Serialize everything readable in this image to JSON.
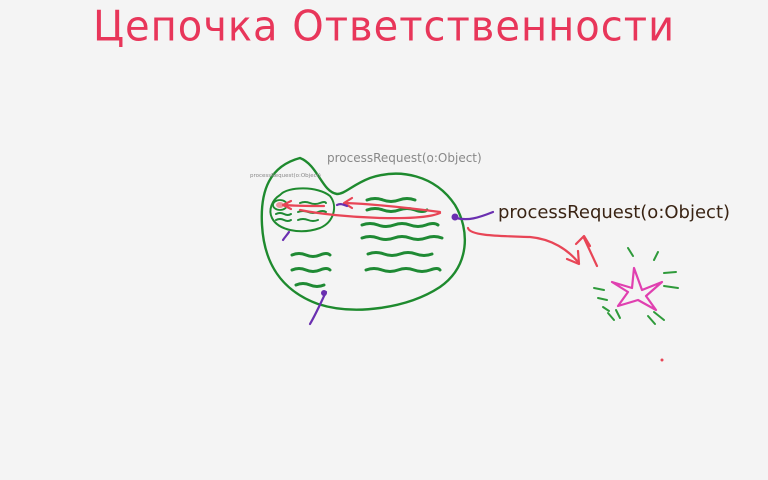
{
  "title": "Цепочка Ответственности",
  "labels": {
    "handler_main": "processRequest(o:Object)",
    "handler_middle": "processRequest(o:Object)",
    "handler_inner": "processRequest(o:Object)"
  },
  "colors": {
    "title": "#e8365a",
    "handler_outline": "#1e8a2e",
    "text_lines": "#1f8a34",
    "request_arrow": "#e84556",
    "hook": "#6a2fb0",
    "star": "#e040b0",
    "sparkle": "#2e9a3a",
    "label_main": "#3a2414",
    "label_small": "#888888"
  }
}
